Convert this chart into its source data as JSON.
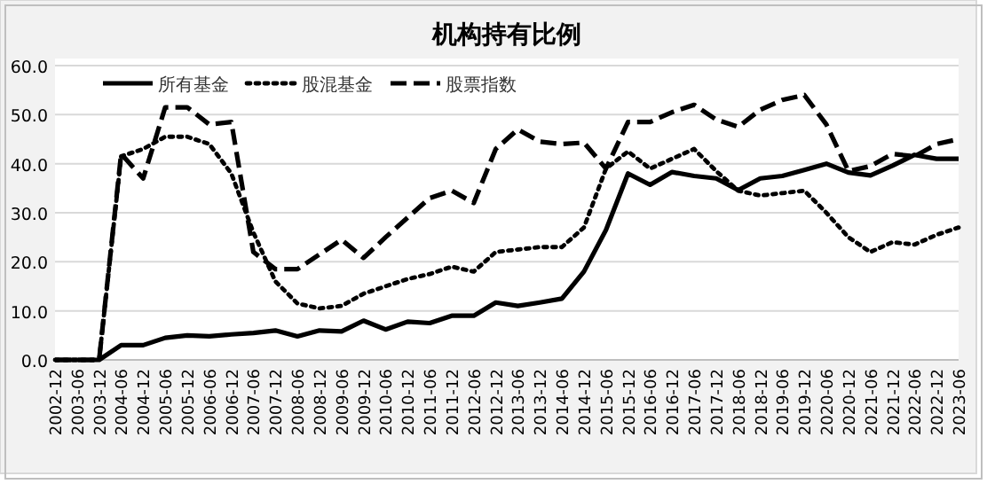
{
  "chart_data": {
    "type": "line",
    "title": "机构持有比例",
    "categories": [
      "2002-12",
      "2003-06",
      "2003-12",
      "2004-06",
      "2004-12",
      "2005-06",
      "2005-12",
      "2006-06",
      "2006-12",
      "2007-06",
      "2007-12",
      "2008-06",
      "2008-12",
      "2009-06",
      "2009-12",
      "2010-06",
      "2010-12",
      "2011-06",
      "2011-12",
      "2012-06",
      "2012-12",
      "2013-06",
      "2013-12",
      "2014-06",
      "2014-12",
      "2015-06",
      "2015-12",
      "2016-06",
      "2016-12",
      "2017-06",
      "2017-12",
      "2018-06",
      "2018-12",
      "2019-06",
      "2019-12",
      "2020-06",
      "2020-12",
      "2021-06",
      "2021-12",
      "2022-06",
      "2022-12",
      "2023-06"
    ],
    "series": [
      {
        "name": "所有基金",
        "color": "#000000",
        "line_style": "solid",
        "values": [
          0,
          0,
          0,
          3,
          3,
          4.5,
          5,
          4.8,
          5.2,
          5.5,
          6,
          4.8,
          6,
          5.8,
          8,
          6.2,
          7.8,
          7.5,
          9,
          9,
          11.7,
          11,
          11.7,
          12.5,
          18,
          26.5,
          38,
          35.7,
          38.3,
          37.5,
          37,
          34.6,
          37,
          37.5,
          38.7,
          40,
          38.2,
          37.6,
          39.6,
          41.8,
          41,
          41
        ]
      },
      {
        "name": "股混基金",
        "color": "#000000",
        "line_style": "dotted",
        "values": [
          0,
          0,
          0,
          41.5,
          43,
          45.5,
          45.5,
          44,
          38,
          26,
          16,
          11.5,
          10.5,
          11,
          13.5,
          15,
          16.5,
          17.5,
          19,
          18,
          22,
          22.5,
          23,
          23,
          27,
          39,
          42.5,
          39,
          41,
          43,
          38.5,
          34.5,
          33.5,
          34,
          34.5,
          30,
          25,
          22,
          24,
          23.5,
          25.5,
          27
        ]
      },
      {
        "name": "股票指数",
        "color": "#000000",
        "line_style": "dashed",
        "values": [
          0,
          0,
          0,
          42,
          37,
          51.5,
          51.5,
          48,
          48.5,
          22,
          18.5,
          18.5,
          21.5,
          24.5,
          20.8,
          25,
          29,
          33,
          34.5,
          32,
          43,
          47,
          44.5,
          44,
          44.3,
          39,
          48.5,
          48.5,
          50.5,
          52,
          49,
          47.5,
          51,
          53,
          54,
          48,
          38.5,
          39.5,
          42,
          41.5,
          44,
          45
        ]
      }
    ],
    "ylim": [
      0,
      60
    ],
    "yticks": [
      {
        "value": 0,
        "label": "0.0"
      },
      {
        "value": 10,
        "label": "10.0"
      },
      {
        "value": 20,
        "label": "20.0"
      },
      {
        "value": 30,
        "label": "30.0"
      },
      {
        "value": 40,
        "label": "40.0"
      },
      {
        "value": 50,
        "label": "50.0"
      },
      {
        "value": 60,
        "label": "60.0"
      }
    ],
    "grid": "y",
    "legend": "top"
  }
}
